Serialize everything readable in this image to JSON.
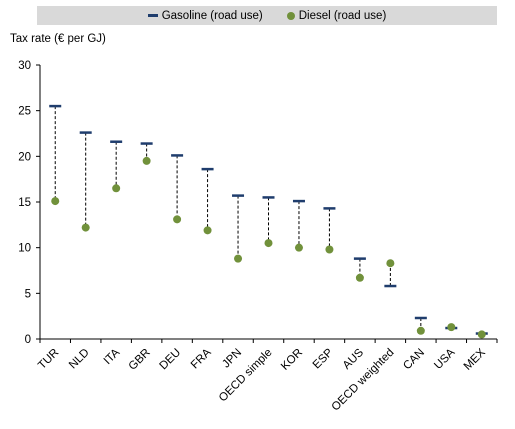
{
  "chart_data": {
    "type": "scatter",
    "ylabel": "Tax rate (€ per GJ)",
    "ylim": [
      0,
      30
    ],
    "yticks": [
      "0",
      "5",
      "10",
      "15",
      "20",
      "25",
      "30"
    ],
    "grid": false,
    "legend_position": "top",
    "categories": [
      "TUR",
      "NLD",
      "ITA",
      "GBR",
      "DEU",
      "FRA",
      "JPN",
      "OECD simple",
      "KOR",
      "ESP",
      "AUS",
      "OECD weighted",
      "CAN",
      "USA",
      "MEX"
    ],
    "series": [
      {
        "name": "Gasoline (road use)",
        "marker": "dash",
        "color": "#1f3d6d",
        "values": [
          25.5,
          22.6,
          21.6,
          21.4,
          20.1,
          18.6,
          15.7,
          15.5,
          15.1,
          14.3,
          8.8,
          5.8,
          2.3,
          1.2,
          0.6
        ]
      },
      {
        "name": "Diesel (road use)",
        "marker": "circle",
        "color": "#71913b",
        "values": [
          15.1,
          12.2,
          16.5,
          19.5,
          13.1,
          11.9,
          8.8,
          10.5,
          10.0,
          9.8,
          6.7,
          8.3,
          0.9,
          1.3,
          0.5
        ]
      }
    ]
  }
}
